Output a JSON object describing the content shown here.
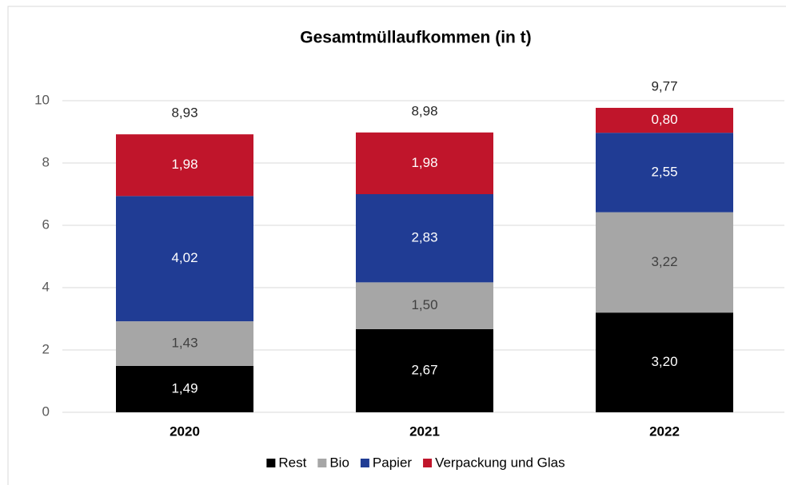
{
  "chart_data": {
    "type": "stacked_bar",
    "title": "Gesamtmüllaufkommen (in t)",
    "categories": [
      "2020",
      "2021",
      "2022"
    ],
    "series": [
      {
        "name": "Rest",
        "color": "#000000",
        "label_color": "#ffffff",
        "values": [
          1.49,
          2.67,
          3.2
        ],
        "value_labels": [
          "1,49",
          "2,67",
          "3,20"
        ]
      },
      {
        "name": "Bio",
        "color": "#a6a6a6",
        "label_color": "#404040",
        "values": [
          1.43,
          1.5,
          3.22
        ],
        "value_labels": [
          "1,43",
          "1,50",
          "3,22"
        ]
      },
      {
        "name": "Papier",
        "color": "#203c94",
        "label_color": "#ffffff",
        "values": [
          4.02,
          2.83,
          2.55
        ],
        "value_labels": [
          "4,02",
          "2,83",
          "2,55"
        ]
      },
      {
        "name": "Verpackung und Glas",
        "color": "#c0152b",
        "label_color": "#ffffff",
        "values": [
          1.98,
          1.98,
          0.8
        ],
        "value_labels": [
          "1,98",
          "1,98",
          "0,80"
        ]
      }
    ],
    "totals": [
      8.93,
      8.98,
      9.77
    ],
    "total_labels": [
      "8,93",
      "8,98",
      "9,77"
    ],
    "ylim": [
      0,
      10
    ],
    "yticks": [
      0,
      2,
      4,
      6,
      8,
      10
    ],
    "grid": true,
    "legend": "bottom"
  }
}
